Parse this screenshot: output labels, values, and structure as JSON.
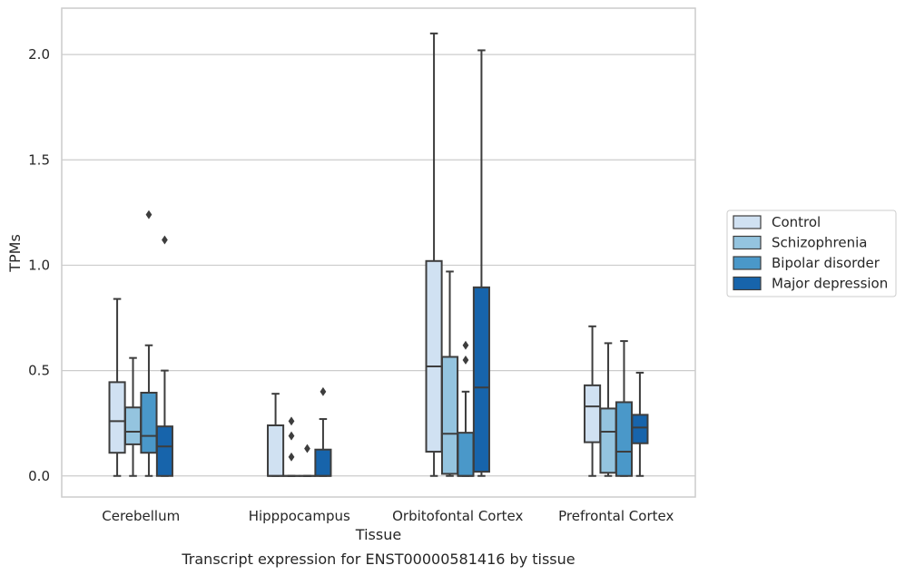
{
  "chart_data": {
    "type": "box",
    "xlabel": "Tissue",
    "ylabel": "TPMs",
    "caption": "Transcript expression for ENST00000581416 by tissue",
    "ylim": [
      -0.1,
      2.22
    ],
    "yticks": [
      {
        "value": 0.0,
        "label": "0.0"
      },
      {
        "value": 0.5,
        "label": "0.5"
      },
      {
        "value": 1.0,
        "label": "1.0"
      },
      {
        "value": 1.5,
        "label": "1.5"
      },
      {
        "value": 2.0,
        "label": "2.0"
      }
    ],
    "grid": "horizontal",
    "legend_position": "right",
    "categories": [
      "Cerebellum",
      "Hipppocampus",
      "Orbitofontal Cortex",
      "Prefrontal Cortex"
    ],
    "series": [
      {
        "name": "Control",
        "color": "#d0e1f2",
        "boxes": [
          {
            "whislo": 0.0,
            "q1": 0.11,
            "med": 0.26,
            "q3": 0.445,
            "whishi": 0.84,
            "fliers": []
          },
          {
            "whislo": 0.0,
            "q1": 0.0,
            "med": 0.0,
            "q3": 0.24,
            "whishi": 0.39,
            "fliers": []
          },
          {
            "whislo": 0.0,
            "q1": 0.115,
            "med": 0.52,
            "q3": 1.02,
            "whishi": 2.1,
            "fliers": []
          },
          {
            "whislo": 0.0,
            "q1": 0.16,
            "med": 0.33,
            "q3": 0.43,
            "whishi": 0.71,
            "fliers": []
          }
        ]
      },
      {
        "name": "Schizophrenia",
        "color": "#94c4df",
        "boxes": [
          {
            "whislo": 0.0,
            "q1": 0.15,
            "med": 0.21,
            "q3": 0.325,
            "whishi": 0.56,
            "fliers": []
          },
          {
            "whislo": 0.0,
            "q1": 0.0,
            "med": 0.0,
            "q3": 0.0,
            "whishi": 0.0,
            "fliers": [
              0.09,
              0.19,
              0.26
            ]
          },
          {
            "whislo": 0.0,
            "q1": 0.01,
            "med": 0.2,
            "q3": 0.565,
            "whishi": 0.97,
            "fliers": []
          },
          {
            "whislo": 0.0,
            "q1": 0.015,
            "med": 0.21,
            "q3": 0.32,
            "whishi": 0.63,
            "fliers": []
          }
        ]
      },
      {
        "name": "Bipolar disorder",
        "color": "#4a98c9",
        "boxes": [
          {
            "whislo": 0.0,
            "q1": 0.11,
            "med": 0.19,
            "q3": 0.395,
            "whishi": 0.62,
            "fliers": [
              1.24
            ]
          },
          {
            "whislo": 0.0,
            "q1": 0.0,
            "med": 0.0,
            "q3": 0.0,
            "whishi": 0.0,
            "fliers": [
              0.13
            ]
          },
          {
            "whislo": 0.0,
            "q1": 0.0,
            "med": 0.0,
            "q3": 0.205,
            "whishi": 0.4,
            "fliers": [
              0.55,
              0.62
            ]
          },
          {
            "whislo": 0.0,
            "q1": 0.0,
            "med": 0.115,
            "q3": 0.35,
            "whishi": 0.64,
            "fliers": []
          }
        ]
      },
      {
        "name": "Major depression",
        "color": "#1764ab",
        "boxes": [
          {
            "whislo": 0.0,
            "q1": 0.0,
            "med": 0.14,
            "q3": 0.235,
            "whishi": 0.5,
            "fliers": [
              1.12
            ]
          },
          {
            "whislo": 0.0,
            "q1": 0.0,
            "med": 0.0,
            "q3": 0.125,
            "whishi": 0.27,
            "fliers": [
              0.4
            ]
          },
          {
            "whislo": 0.0,
            "q1": 0.02,
            "med": 0.42,
            "q3": 0.895,
            "whishi": 2.02,
            "fliers": []
          },
          {
            "whislo": 0.0,
            "q1": 0.155,
            "med": 0.23,
            "q3": 0.29,
            "whishi": 0.49,
            "fliers": []
          }
        ]
      }
    ]
  }
}
